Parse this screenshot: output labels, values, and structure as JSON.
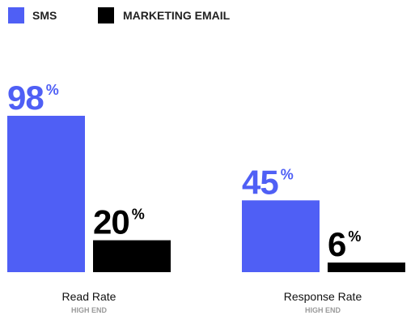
{
  "chart_data": {
    "type": "bar",
    "categories": [
      "Read Rate",
      "Response Rate"
    ],
    "category_sublabels": [
      "HIGH END",
      "HIGH END"
    ],
    "series": [
      {
        "name": "SMS",
        "values": [
          98,
          45
        ],
        "color": "#4f5ff5"
      },
      {
        "name": "MARKETING EMAIL",
        "values": [
          20,
          6
        ],
        "color": "#000000"
      }
    ],
    "value_labels": [
      [
        "98",
        "45"
      ],
      [
        "20",
        "6"
      ]
    ],
    "unit_suffix": "%",
    "title": "",
    "xlabel": "",
    "ylabel": "",
    "ylim": [
      0,
      100
    ],
    "grid": false,
    "legend_position": "top-left"
  }
}
